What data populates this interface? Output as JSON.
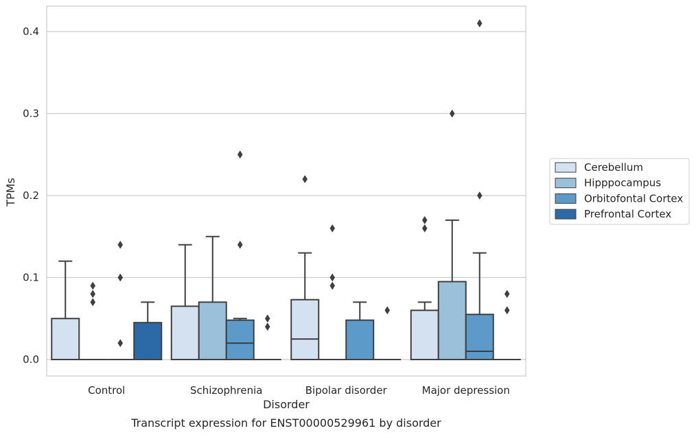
{
  "chart_data": {
    "type": "box",
    "xlabel": "Disorder",
    "ylabel": "TPMs",
    "caption": "Transcript expression for ENST00000529961 by disorder",
    "ylim": [
      -0.02,
      0.43
    ],
    "yticks": [
      0.0,
      0.1,
      0.2,
      0.3,
      0.4
    ],
    "ytick_labels": [
      "0.0",
      "0.1",
      "0.2",
      "0.3",
      "0.4"
    ],
    "grid": "horizontal",
    "legend_position": "right",
    "categories": [
      "Control",
      "Schizophrenia",
      "Bipolar disorder",
      "Major depression"
    ],
    "series": [
      {
        "name": "Cerebellum",
        "color": "#d3e1f0",
        "boxes": [
          {
            "min": 0.0,
            "q1": 0.0,
            "median": 0.0,
            "q3": 0.05,
            "max": 0.12,
            "outliers": []
          },
          {
            "min": 0.0,
            "q1": 0.0,
            "median": 0.0,
            "q3": 0.065,
            "max": 0.14,
            "outliers": []
          },
          {
            "min": 0.0,
            "q1": 0.0,
            "median": 0.025,
            "q3": 0.073,
            "max": 0.13,
            "outliers": [
              0.22
            ]
          },
          {
            "min": 0.0,
            "q1": 0.0,
            "median": 0.0,
            "q3": 0.06,
            "max": 0.07,
            "outliers": [
              0.16,
              0.17
            ]
          }
        ]
      },
      {
        "name": "Hipppocampus",
        "color": "#9ac0da",
        "boxes": [
          {
            "min": 0.0,
            "q1": 0.0,
            "median": 0.0,
            "q3": 0.0,
            "max": 0.0,
            "outliers": [
              0.07,
              0.08,
              0.09
            ]
          },
          {
            "min": 0.0,
            "q1": 0.0,
            "median": 0.0,
            "q3": 0.07,
            "max": 0.15,
            "outliers": []
          },
          {
            "min": 0.0,
            "q1": 0.0,
            "median": 0.0,
            "q3": 0.0,
            "max": 0.0,
            "outliers": [
              0.09,
              0.1,
              0.16
            ]
          },
          {
            "min": 0.0,
            "q1": 0.0,
            "median": 0.0,
            "q3": 0.095,
            "max": 0.17,
            "outliers": [
              0.3
            ]
          }
        ]
      },
      {
        "name": "Orbitofontal Cortex",
        "color": "#5b9ac9",
        "boxes": [
          {
            "min": 0.0,
            "q1": 0.0,
            "median": 0.0,
            "q3": 0.0,
            "max": 0.0,
            "outliers": [
              0.02,
              0.1,
              0.14
            ]
          },
          {
            "min": 0.0,
            "q1": 0.0,
            "median": 0.02,
            "q3": 0.048,
            "max": 0.05,
            "outliers": [
              0.14,
              0.25
            ]
          },
          {
            "min": 0.0,
            "q1": 0.0,
            "median": 0.0,
            "q3": 0.048,
            "max": 0.07,
            "outliers": []
          },
          {
            "min": 0.0,
            "q1": 0.0,
            "median": 0.01,
            "q3": 0.055,
            "max": 0.13,
            "outliers": [
              0.2,
              0.41
            ]
          }
        ]
      },
      {
        "name": "Prefrontal Cortex",
        "color": "#2b6aa6",
        "boxes": [
          {
            "min": 0.0,
            "q1": 0.0,
            "median": 0.0,
            "q3": 0.045,
            "max": 0.07,
            "outliers": []
          },
          {
            "min": 0.0,
            "q1": 0.0,
            "median": 0.0,
            "q3": 0.0,
            "max": 0.0,
            "outliers": [
              0.04,
              0.05
            ]
          },
          {
            "min": 0.0,
            "q1": 0.0,
            "median": 0.0,
            "q3": 0.0,
            "max": 0.0,
            "outliers": [
              0.06
            ]
          },
          {
            "min": 0.0,
            "q1": 0.0,
            "median": 0.0,
            "q3": 0.0,
            "max": 0.0,
            "outliers": [
              0.06,
              0.08
            ]
          }
        ]
      }
    ]
  }
}
